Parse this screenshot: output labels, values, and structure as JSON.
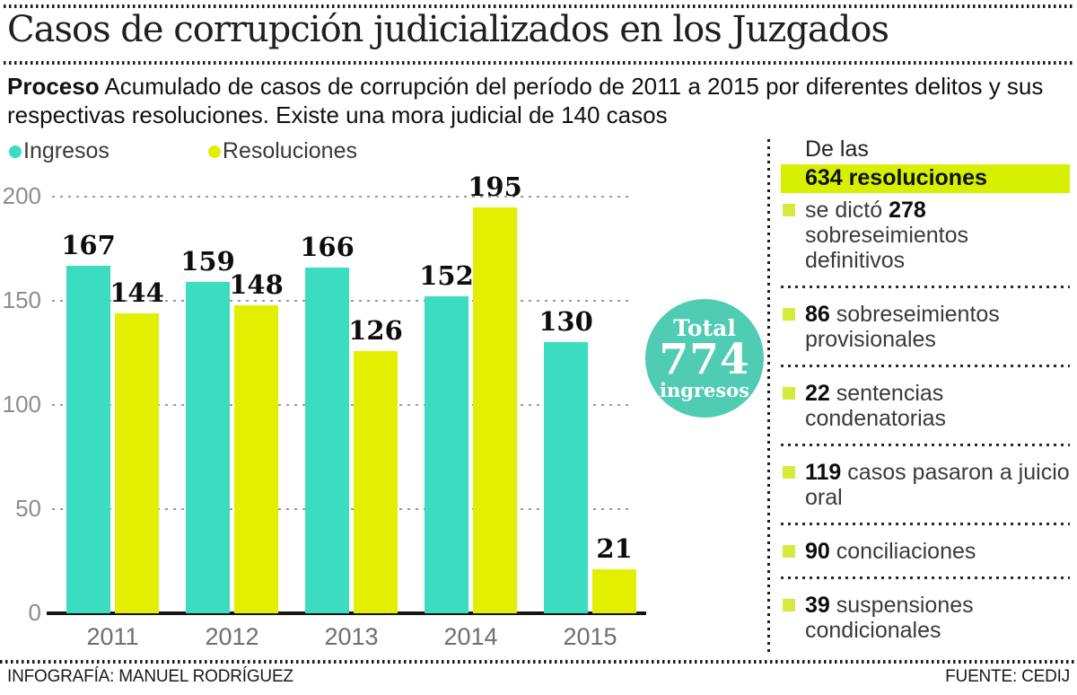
{
  "title": "Casos de corrupción judicializados en los Juzgados",
  "subtitle": {
    "lead": "Proceso",
    "text": "Acumulado de casos de corrupción del período de 2011 a 2015 por diferentes delitos y sus respectivas resoluciones. Existe una mora judicial de 140 casos"
  },
  "colors": {
    "ingresos": "#3cdcc0",
    "resoluciones": "#e2ef00",
    "total_circle": "#50ccb4",
    "highlight": "#d7ef00",
    "bullet": "#d6ea3e"
  },
  "chart_data": {
    "type": "bar",
    "categories": [
      "2011",
      "2012",
      "2013",
      "2014",
      "2015"
    ],
    "series": [
      {
        "name": "Ingresos",
        "color": "#3cdcc0",
        "values": [
          167,
          159,
          166,
          152,
          130
        ]
      },
      {
        "name": "Resoluciones",
        "color": "#e2ef00",
        "values": [
          144,
          148,
          126,
          195,
          21
        ]
      }
    ],
    "title": "",
    "xlabel": "",
    "ylabel": "",
    "ylim": [
      0,
      200
    ],
    "yticks": [
      0,
      50,
      100,
      150,
      200
    ],
    "grid": "horizontal-dotted",
    "legend_position": "top-left",
    "value_labels": true
  },
  "total_badge": {
    "label": "Total",
    "value": "774",
    "unit": "ingresos"
  },
  "sidebar": {
    "header_line1": "De las",
    "header_line2": "634 resoluciones",
    "items": [
      {
        "pre": "se dictó ",
        "num": "278",
        "post": " sobreseimientos definitivos"
      },
      {
        "pre": "",
        "num": "86",
        "post": " sobreseimientos provisionales"
      },
      {
        "pre": "",
        "num": "22",
        "post": " sentencias condenatorias"
      },
      {
        "pre": "",
        "num": "119",
        "post": " casos pasaron a juicio oral"
      },
      {
        "pre": "",
        "num": "90",
        "post": " conciliaciones"
      },
      {
        "pre": "",
        "num": "39",
        "post": " suspensiones condicionales"
      }
    ]
  },
  "footer": {
    "left": "INFOGRAFÍA: MANUEL RODRÍGUEZ",
    "right": "FUENTE: CEDIJ"
  }
}
